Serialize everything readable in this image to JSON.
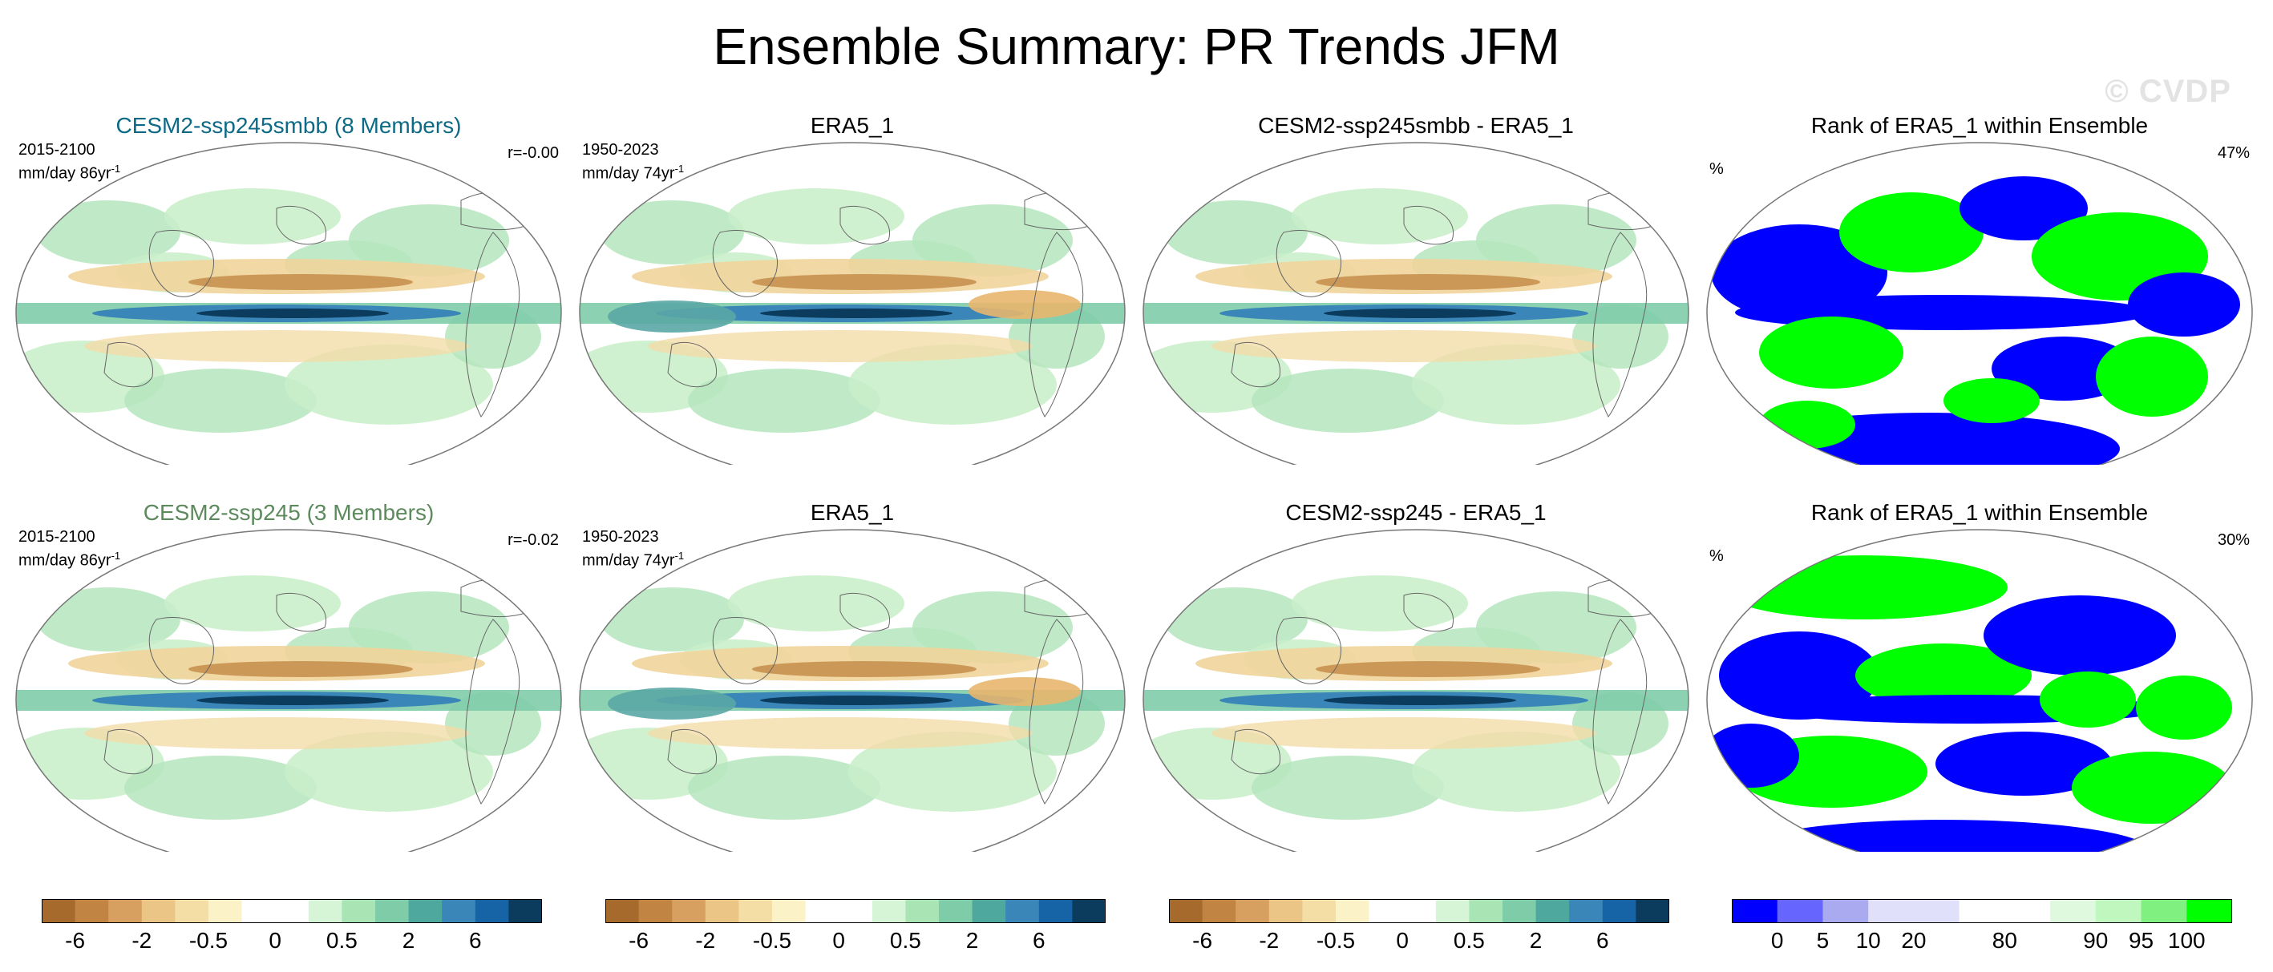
{
  "title": "Ensemble Summary: PR Trends JFM",
  "watermark": "© CVDP",
  "rows": [
    {
      "model": {
        "title": "CESM2-ssp245smbb (8 Members)",
        "period": "2015-2100",
        "units": "mm/day 86yr",
        "units_sup": "-1",
        "corr": "r=-0.00"
      },
      "obs": {
        "title": "ERA5_1",
        "period": "1950-2023",
        "units": "mm/day 74yr",
        "units_sup": "-1"
      },
      "diff": {
        "title": "CESM2-ssp245smbb - ERA5_1"
      },
      "rank": {
        "title": "Rank of ERA5_1 within Ensemble",
        "pct_label": "%",
        "pct_value": "47%"
      }
    },
    {
      "model": {
        "title": "CESM2-ssp245 (3 Members)",
        "period": "2015-2100",
        "units": "mm/day 86yr",
        "units_sup": "-1",
        "corr": "r=-0.02"
      },
      "obs": {
        "title": "ERA5_1",
        "period": "1950-2023",
        "units": "mm/day 74yr",
        "units_sup": "-1"
      },
      "diff": {
        "title": "CESM2-ssp245 - ERA5_1"
      },
      "rank": {
        "title": "Rank of ERA5_1 within Ensemble",
        "pct_label": "%",
        "pct_value": "30%"
      }
    }
  ],
  "colorbars": {
    "trend": {
      "colors": [
        "#a66a2d",
        "#c18442",
        "#d7a061",
        "#ebc585",
        "#f4dea5",
        "#fcf2c8",
        "#ffffff",
        "#ffffff",
        "#d6f5d6",
        "#a9e4b4",
        "#7fcca8",
        "#4ea89e",
        "#3b86b8",
        "#1663a6",
        "#0b3b5d"
      ],
      "ticks": [
        "-6",
        "-2",
        "-0.5",
        "0",
        "0.5",
        "2",
        "6"
      ]
    },
    "rank": {
      "colors": [
        "#0000ff",
        "#6666ff",
        "#aaaaf0",
        "#e0e0fa",
        "#e0e0fa",
        "#ffffff",
        "#ffffff",
        "#dff9df",
        "#bff7bf",
        "#80f080",
        "#00ff00"
      ],
      "ticks": [
        "0",
        "5",
        "10",
        "20",
        "80",
        "90",
        "95",
        "100"
      ]
    }
  }
}
